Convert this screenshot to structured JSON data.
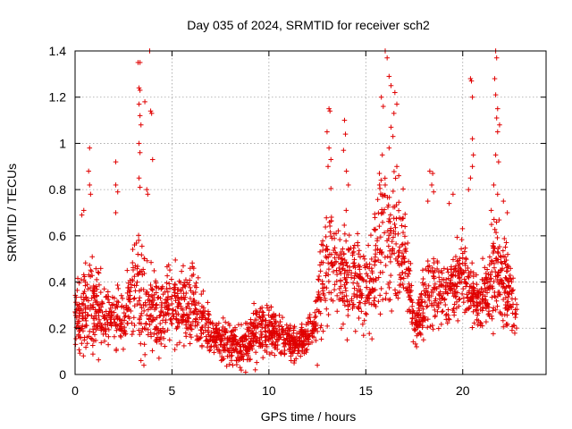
{
  "chart_data": {
    "type": "scatter",
    "title": "Day 035 of 2024, SRMTID for receiver sch2",
    "xlabel": "GPS time / hours",
    "ylabel": "SRMTID / TECUs",
    "xlim": [
      0,
      24.3
    ],
    "ylim": [
      0,
      1.4
    ],
    "x_ticks": [
      0,
      5,
      10,
      15,
      20
    ],
    "x_tick_labels": [
      "0",
      "5",
      "10",
      "15",
      "20"
    ],
    "y_ticks": [
      0,
      0.2,
      0.4,
      0.6,
      0.8,
      1.0,
      1.2,
      1.4
    ],
    "y_tick_labels": [
      "0",
      "0.2",
      "0.4",
      "0.6",
      "0.8",
      "1",
      "1.2",
      "1.4"
    ],
    "grid": true,
    "marker": "+",
    "color": "#e00000",
    "series": [
      {
        "name": "sch2",
        "description_of_envelope": "dense scatter of SRMTID samples; typical level vs hour with spread",
        "profile": [
          {
            "x": 0.0,
            "y": 0.25,
            "spread": 0.12
          },
          {
            "x": 0.7,
            "y": 0.3,
            "spread": 0.2
          },
          {
            "x": 1.5,
            "y": 0.25,
            "spread": 0.12
          },
          {
            "x": 2.5,
            "y": 0.25,
            "spread": 0.12
          },
          {
            "x": 3.2,
            "y": 0.4,
            "spread": 0.25
          },
          {
            "x": 4.0,
            "y": 0.25,
            "spread": 0.15
          },
          {
            "x": 5.0,
            "y": 0.3,
            "spread": 0.15
          },
          {
            "x": 6.0,
            "y": 0.3,
            "spread": 0.15
          },
          {
            "x": 7.0,
            "y": 0.18,
            "spread": 0.08
          },
          {
            "x": 8.5,
            "y": 0.12,
            "spread": 0.07
          },
          {
            "x": 9.5,
            "y": 0.2,
            "spread": 0.1
          },
          {
            "x": 10.5,
            "y": 0.18,
            "spread": 0.08
          },
          {
            "x": 11.5,
            "y": 0.12,
            "spread": 0.06
          },
          {
            "x": 12.3,
            "y": 0.2,
            "spread": 0.08
          },
          {
            "x": 13.0,
            "y": 0.5,
            "spread": 0.25
          },
          {
            "x": 14.0,
            "y": 0.45,
            "spread": 0.2
          },
          {
            "x": 15.0,
            "y": 0.35,
            "spread": 0.18
          },
          {
            "x": 16.0,
            "y": 0.6,
            "spread": 0.3
          },
          {
            "x": 17.0,
            "y": 0.5,
            "spread": 0.2
          },
          {
            "x": 17.5,
            "y": 0.22,
            "spread": 0.08
          },
          {
            "x": 18.3,
            "y": 0.35,
            "spread": 0.18
          },
          {
            "x": 19.2,
            "y": 0.35,
            "spread": 0.12
          },
          {
            "x": 20.0,
            "y": 0.45,
            "spread": 0.15
          },
          {
            "x": 20.8,
            "y": 0.3,
            "spread": 0.1
          },
          {
            "x": 21.6,
            "y": 0.45,
            "spread": 0.22
          },
          {
            "x": 22.2,
            "y": 0.4,
            "spread": 0.18
          },
          {
            "x": 22.8,
            "y": 0.25,
            "spread": 0.1
          }
        ],
        "outliers": [
          [
            0.35,
            0.69
          ],
          [
            0.45,
            0.71
          ],
          [
            0.75,
            0.98
          ],
          [
            0.7,
            0.88
          ],
          [
            0.75,
            0.82
          ],
          [
            0.8,
            0.78
          ],
          [
            2.1,
            0.92
          ],
          [
            2.1,
            0.82
          ],
          [
            2.2,
            0.79
          ],
          [
            2.1,
            0.7
          ],
          [
            3.3,
            0.85
          ],
          [
            3.35,
            0.81
          ],
          [
            3.25,
            1.35
          ],
          [
            3.35,
            1.35
          ],
          [
            3.3,
            1.24
          ],
          [
            3.35,
            1.23
          ],
          [
            3.3,
            1.17
          ],
          [
            3.35,
            1.12
          ],
          [
            3.4,
            1.08
          ],
          [
            3.3,
            1.0
          ],
          [
            3.35,
            0.96
          ],
          [
            3.6,
            1.18
          ],
          [
            3.85,
            1.4
          ],
          [
            3.9,
            1.14
          ],
          [
            3.95,
            1.13
          ],
          [
            4.0,
            0.93
          ],
          [
            3.7,
            0.8
          ],
          [
            3.75,
            0.78
          ],
          [
            13.1,
            1.15
          ],
          [
            13.15,
            1.14
          ],
          [
            13.0,
            1.05
          ],
          [
            13.1,
            0.98
          ],
          [
            13.2,
            0.93
          ],
          [
            13.05,
            0.9
          ],
          [
            13.9,
            1.1
          ],
          [
            13.95,
            1.04
          ],
          [
            13.85,
            0.97
          ],
          [
            14.0,
            0.88
          ],
          [
            14.1,
            0.82
          ],
          [
            16.0,
            1.4
          ],
          [
            16.1,
            1.37
          ],
          [
            16.2,
            1.29
          ],
          [
            16.3,
            1.25
          ],
          [
            15.8,
            1.2
          ],
          [
            15.9,
            1.16
          ],
          [
            16.5,
            1.22
          ],
          [
            16.6,
            1.17
          ],
          [
            16.45,
            1.13
          ],
          [
            16.3,
            1.07
          ],
          [
            16.4,
            1.03
          ],
          [
            16.2,
            0.98
          ],
          [
            15.85,
            0.95
          ],
          [
            16.6,
            0.9
          ],
          [
            16.7,
            0.86
          ],
          [
            15.7,
            0.87
          ],
          [
            16.0,
            0.82
          ],
          [
            18.3,
            0.88
          ],
          [
            18.45,
            0.87
          ],
          [
            18.4,
            0.82
          ],
          [
            18.5,
            0.79
          ],
          [
            18.2,
            0.75
          ],
          [
            20.4,
            1.28
          ],
          [
            20.45,
            1.27
          ],
          [
            20.5,
            1.2
          ],
          [
            20.5,
            1.02
          ],
          [
            20.55,
            0.95
          ],
          [
            20.5,
            0.9
          ],
          [
            20.4,
            0.85
          ],
          [
            20.3,
            0.8
          ],
          [
            19.5,
            0.78
          ],
          [
            19.3,
            0.74
          ],
          [
            21.7,
            1.4
          ],
          [
            21.75,
            1.37
          ],
          [
            21.65,
            1.28
          ],
          [
            21.7,
            1.21
          ],
          [
            21.8,
            1.15
          ],
          [
            21.75,
            1.11
          ],
          [
            21.9,
            1.08
          ],
          [
            21.8,
            1.05
          ],
          [
            21.7,
            0.95
          ],
          [
            21.85,
            0.92
          ],
          [
            21.6,
            0.82
          ],
          [
            21.8,
            0.78
          ],
          [
            22.1,
            0.75
          ],
          [
            22.3,
            0.7
          ],
          [
            3.55,
            0.04
          ],
          [
            3.4,
            0.06
          ],
          [
            9.3,
            0.02
          ],
          [
            8.8,
            0.01
          ],
          [
            12.5,
            0.04
          ],
          [
            11.3,
            0.05
          ]
        ],
        "n_points": 2400
      }
    ]
  }
}
